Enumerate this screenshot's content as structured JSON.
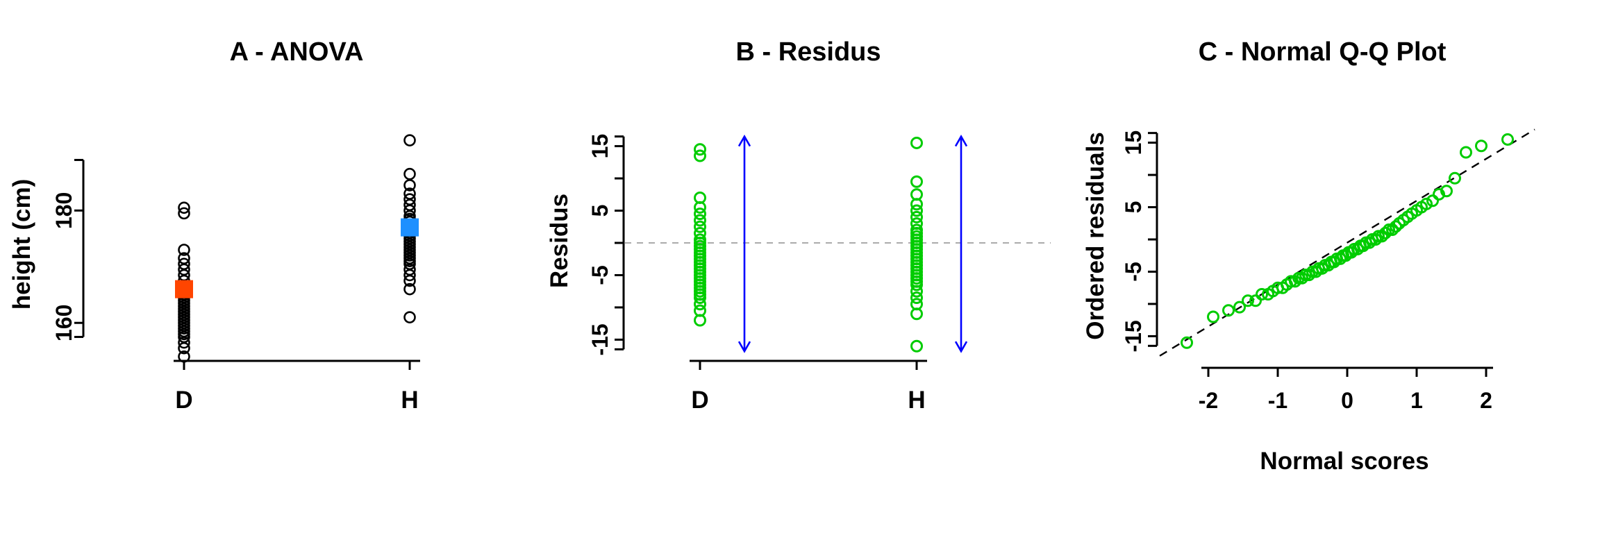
{
  "page": {
    "background": "#FFFFFF"
  },
  "chart_data": [
    {
      "id": "anova",
      "type": "scatter",
      "title": "A - ANOVA",
      "xlabel": "",
      "ylabel": "height (cm)",
      "categories": [
        "D",
        "H"
      ],
      "yticks": [
        160,
        180
      ],
      "ylim": [
        152,
        194
      ],
      "point_color": "#000000",
      "groups": [
        {
          "label": "D",
          "mean": 166,
          "mean_color": "#FF4500",
          "heights": [
            154,
            155.5,
            156.5,
            157.5,
            158,
            158.5,
            159,
            159.5,
            160,
            160.5,
            161,
            161.5,
            162,
            162.5,
            163,
            163.5,
            164,
            164.5,
            165,
            165.5,
            166,
            166.5,
            167.5,
            168.5,
            169.5,
            170.5,
            171.5,
            173,
            179.5,
            180.5
          ]
        },
        {
          "label": "H",
          "mean": 177,
          "mean_color": "#1E90FF",
          "heights": [
            161,
            166,
            167.5,
            168.5,
            169.5,
            170.5,
            171,
            171.5,
            172,
            172.5,
            173,
            173.5,
            174,
            174.5,
            175,
            175.5,
            176,
            176.5,
            177,
            177.5,
            178,
            178.5,
            179,
            180,
            181,
            182,
            183,
            184.5,
            186.5,
            192.5
          ]
        }
      ]
    },
    {
      "id": "residuals",
      "type": "scatter",
      "title": "B - Residus",
      "xlabel": "",
      "ylabel": "Residus",
      "categories": [
        "D",
        "H"
      ],
      "yticks": [
        -15,
        -5,
        5,
        15
      ],
      "ytick_marks": [
        -15,
        -10,
        -5,
        0,
        5,
        10,
        15
      ],
      "ylim": [
        -17,
        17
      ],
      "point_color": "#00CC00",
      "zero_line": {
        "y": 0,
        "color": "#AAAAAA",
        "style": "dashed"
      },
      "arrows": {
        "color": "#0000FF",
        "span": [
          -16.8,
          16.5
        ]
      },
      "groups": [
        {
          "label": "D",
          "residuals": [
            -12,
            -10.5,
            -9.5,
            -8.5,
            -8,
            -7.5,
            -7,
            -6.5,
            -6,
            -5.5,
            -5,
            -4.5,
            -4,
            -3.5,
            -3,
            -2.5,
            -2,
            -1.5,
            -1,
            -0.5,
            0,
            0.5,
            1.5,
            2.5,
            3.5,
            4.5,
            5.5,
            7,
            13.5,
            14.5
          ]
        },
        {
          "label": "H",
          "residuals": [
            -16,
            -11,
            -9.5,
            -8.5,
            -7.5,
            -6.5,
            -6,
            -5.5,
            -5,
            -4.5,
            -4,
            -3.5,
            -3,
            -2.5,
            -2,
            -1.5,
            -1,
            -0.5,
            0,
            0.5,
            1,
            1.5,
            2,
            3,
            4,
            5,
            6,
            7.5,
            9.5,
            15.5
          ]
        }
      ]
    },
    {
      "id": "qqplot",
      "type": "scatter",
      "title": "C - Normal Q-Q Plot",
      "xlabel": "Normal scores",
      "ylabel": "Ordered residuals",
      "xticks": [
        -2,
        -1,
        0,
        1,
        2
      ],
      "yticks": [
        -15,
        -5,
        5,
        15
      ],
      "ytick_marks": [
        -15,
        -10,
        -5,
        0,
        5,
        10,
        15
      ],
      "xlim": [
        -2.6,
        2.6
      ],
      "ylim": [
        -17,
        17
      ],
      "point_color": "#00CC00",
      "reference_line": {
        "style": "dashed",
        "color": "#000000",
        "slope": 6.5,
        "intercept": -0.5
      },
      "x": [
        -2.31,
        -1.93,
        -1.71,
        -1.55,
        -1.43,
        -1.32,
        -1.23,
        -1.14,
        -1.07,
        -1.0,
        -0.93,
        -0.87,
        -0.81,
        -0.75,
        -0.7,
        -0.65,
        -0.6,
        -0.55,
        -0.5,
        -0.45,
        -0.41,
        -0.36,
        -0.32,
        -0.27,
        -0.23,
        -0.19,
        -0.15,
        -0.1,
        -0.06,
        -0.02,
        0.02,
        0.06,
        0.1,
        0.15,
        0.19,
        0.23,
        0.27,
        0.32,
        0.36,
        0.41,
        0.45,
        0.5,
        0.55,
        0.6,
        0.65,
        0.7,
        0.75,
        0.81,
        0.87,
        0.93,
        1.0,
        1.07,
        1.14,
        1.23,
        1.32,
        1.43,
        1.55,
        1.71,
        1.93,
        2.31
      ],
      "y": [
        -16,
        -12,
        -11,
        -10.5,
        -9.5,
        -9.5,
        -8.5,
        -8.5,
        -8,
        -7.5,
        -7.5,
        -7,
        -6.5,
        -6.5,
        -6,
        -6,
        -5.5,
        -5.5,
        -5,
        -5,
        -4.5,
        -4.5,
        -4,
        -4,
        -3.5,
        -3.5,
        -3,
        -3,
        -2.5,
        -2.5,
        -2,
        -2,
        -1.5,
        -1.5,
        -1,
        -1,
        -0.5,
        -0.5,
        0,
        0,
        0.5,
        0.5,
        1,
        1.5,
        1.5,
        2,
        2.5,
        3,
        3.5,
        4,
        4.5,
        5,
        5.5,
        6,
        7,
        7.5,
        9.5,
        13.5,
        14.5,
        15.5
      ]
    }
  ]
}
